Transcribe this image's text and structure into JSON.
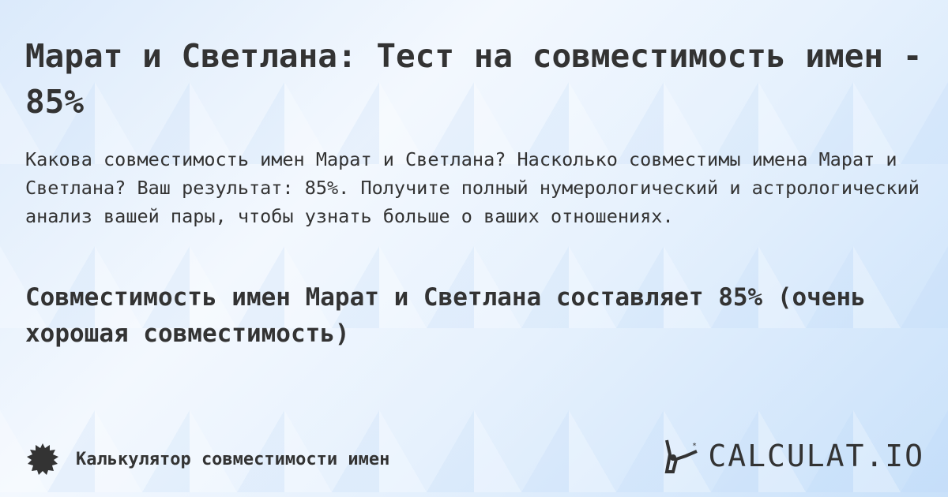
{
  "title": "Марат и Светлана: Тест на совместимость имен - 85%",
  "description": "Какова совместимость имен Марат и Светлана? Насколько совместимы имена Марат и Светлана? Ваш результат: 85%. Получите полный нумерологический и астрологический анализ вашей пары, чтобы узнать больше о ваших отношениях.",
  "result": "Совместимость имен Марат и Светлана составляет 85% (очень хорошая совместимость)",
  "footer": {
    "label": "Калькулятор совместимости имен",
    "icon": "badge-icon"
  },
  "logo": {
    "text": "CALCULAT.IO"
  }
}
